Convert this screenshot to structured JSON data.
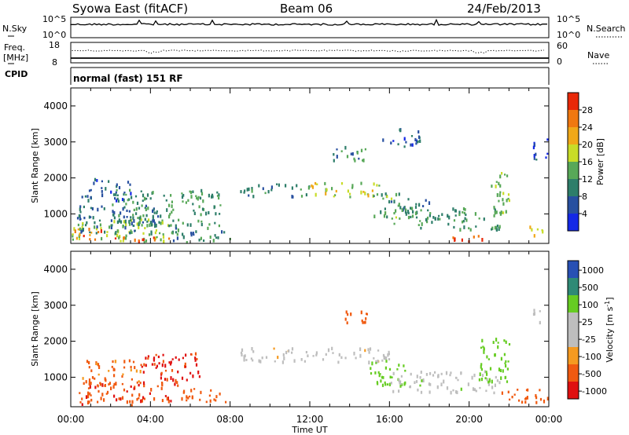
{
  "header": {
    "station": "Syowa East (fitACF)",
    "beam": "Beam 06",
    "date": "24/Feb/2013"
  },
  "noise_panel": {
    "left_label": "N.Sky",
    "right_label": "N.Search",
    "left_ticks": [
      "10^5",
      "10^0"
    ],
    "right_ticks": [
      "10^5",
      "10^0"
    ]
  },
  "freq_panel": {
    "left_label_1": "Freq.",
    "left_label_2": "[MHz]",
    "right_label": "Nave",
    "left_ticks": [
      "18",
      "8"
    ],
    "right_ticks": [
      "60",
      "0"
    ]
  },
  "cpid_panel": {
    "label": "CPID",
    "mode_text": "normal (fast) 151 RF"
  },
  "colors": {
    "power_scale": [
      "#1428e6",
      "#2850a0",
      "#2e7e6a",
      "#58a858",
      "#c8dc28",
      "#f0a818",
      "#f07810",
      "#e82808"
    ],
    "velocity_scale": [
      "#e01010",
      "#f05a10",
      "#f59a20",
      "#bebebe",
      "#bebebe",
      "#66cc22",
      "#2f8a76",
      "#2850b4"
    ]
  },
  "x_axis": {
    "label": "Time UT",
    "ticks": [
      "00:00",
      "04:00",
      "08:00",
      "12:00",
      "16:00",
      "20:00",
      "00:00"
    ]
  },
  "chart_data": [
    {
      "panel": "power",
      "type": "heatmap",
      "xlabel": "Time UT",
      "ylabel": "Slant Range [km]",
      "x_range_hours": [
        0,
        24
      ],
      "ylim": [
        180,
        4500
      ],
      "y_ticks": [
        1000,
        2000,
        3000,
        4000
      ],
      "colorbar_label": "Power [dB]",
      "colorbar_ticks": [
        "4",
        "8",
        "12",
        "16",
        "20",
        "24",
        "28"
      ],
      "colorbar_range": [
        0,
        32
      ],
      "regions": [
        {
          "t": [
            0.0,
            5.0
          ],
          "r": [
            250,
            900
          ],
          "v": 16
        },
        {
          "t": [
            0.0,
            1.5
          ],
          "r": [
            300,
            650
          ],
          "v": 26
        },
        {
          "t": [
            2.0,
            5.0
          ],
          "r": [
            200,
            380
          ],
          "v": 28
        },
        {
          "t": [
            0.3,
            4.5
          ],
          "r": [
            500,
            1300
          ],
          "v": 8
        },
        {
          "t": [
            0.5,
            3.0
          ],
          "r": [
            1400,
            2000
          ],
          "v": 6
        },
        {
          "t": [
            2.0,
            7.5
          ],
          "r": [
            700,
            1700
          ],
          "v": 12
        },
        {
          "t": [
            5.0,
            8.0
          ],
          "r": [
            200,
            700
          ],
          "v": 10
        },
        {
          "t": [
            8.5,
            12.0
          ],
          "r": [
            1500,
            1850
          ],
          "v": 10
        },
        {
          "t": [
            12.0,
            15.5
          ],
          "r": [
            1500,
            1900
          ],
          "v": 18
        },
        {
          "t": [
            13.0,
            15.0
          ],
          "r": [
            2500,
            2900
          ],
          "v": 10
        },
        {
          "t": [
            15.0,
            16.5
          ],
          "r": [
            900,
            1600
          ],
          "v": 14
        },
        {
          "t": [
            15.5,
            17.5
          ],
          "r": [
            2900,
            3400
          ],
          "v": 6
        },
        {
          "t": [
            16.0,
            18.0
          ],
          "r": [
            1050,
            1450
          ],
          "v": 8
        },
        {
          "t": [
            16.0,
            21.5
          ],
          "r": [
            600,
            1200
          ],
          "v": 12
        },
        {
          "t": [
            19.0,
            21.5
          ],
          "r": [
            250,
            420
          ],
          "v": 28
        },
        {
          "t": [
            21.0,
            22.0
          ],
          "r": [
            1000,
            2200
          ],
          "v": 15
        },
        {
          "t": [
            23.0,
            24.0
          ],
          "r": [
            400,
            700
          ],
          "v": 18
        },
        {
          "t": [
            23.2,
            24.0
          ],
          "r": [
            2500,
            3100
          ],
          "v": 6
        }
      ]
    },
    {
      "panel": "velocity",
      "type": "heatmap",
      "xlabel": "Time UT",
      "ylabel": "Slant Range [km]",
      "x_range_hours": [
        0,
        24
      ],
      "ylim": [
        180,
        4500
      ],
      "y_ticks": [
        1000,
        2000,
        3000,
        4000
      ],
      "colorbar_label": "Velocity [m s^-1]",
      "colorbar_ticks": [
        "1000",
        "500",
        "100",
        "25",
        "-25",
        "-100",
        "-500",
        "-1000"
      ],
      "regions": [
        {
          "t": [
            0.0,
            5.0
          ],
          "r": [
            250,
            900
          ],
          "v": -400
        },
        {
          "t": [
            0.5,
            3.5
          ],
          "r": [
            800,
            1500
          ],
          "v": -150
        },
        {
          "t": [
            3.5,
            6.5
          ],
          "r": [
            800,
            1700
          ],
          "v": -600
        },
        {
          "t": [
            5.5,
            8.0
          ],
          "r": [
            300,
            700
          ],
          "v": -300
        },
        {
          "t": [
            8.5,
            16.0
          ],
          "r": [
            1450,
            1850
          ],
          "v": 0
        },
        {
          "t": [
            13.5,
            15.0
          ],
          "r": [
            2500,
            2900
          ],
          "v": -250
        },
        {
          "t": [
            15.0,
            17.0
          ],
          "r": [
            800,
            1500
          ],
          "v": 200
        },
        {
          "t": [
            16.0,
            21.5
          ],
          "r": [
            600,
            1200
          ],
          "v": 60
        },
        {
          "t": [
            20.5,
            22.0
          ],
          "r": [
            800,
            2100
          ],
          "v": 300
        },
        {
          "t": [
            21.5,
            24.0
          ],
          "r": [
            300,
            700
          ],
          "v": -200
        },
        {
          "t": [
            23.2,
            24.0
          ],
          "r": [
            2500,
            2900
          ],
          "v": 50
        }
      ]
    }
  ]
}
